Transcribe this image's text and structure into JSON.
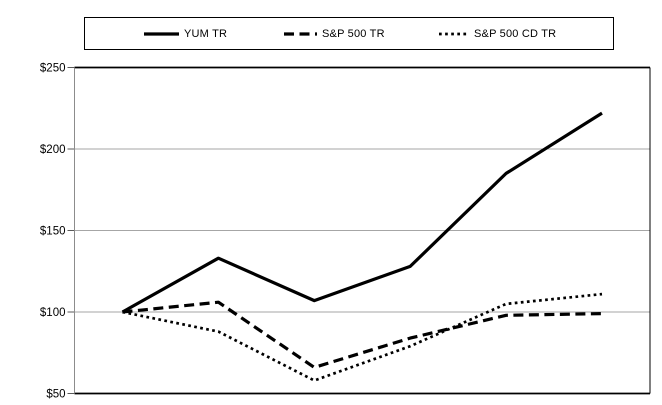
{
  "chart_data": {
    "type": "line",
    "title": "",
    "x": [
      1,
      2,
      3,
      4,
      5,
      6
    ],
    "x_axis_labels": [],
    "series": [
      {
        "name": "YUM TR",
        "line_style": "solid",
        "color": "#000000",
        "values": [
          100,
          133,
          107,
          128,
          185,
          222
        ]
      },
      {
        "name": "S&P 500 TR",
        "line_style": "dashed",
        "color": "#000000",
        "values": [
          100,
          106,
          66,
          84,
          98,
          99
        ]
      },
      {
        "name": "S&P 500 CD TR",
        "line_style": "dotted",
        "color": "#000000",
        "values": [
          100,
          88,
          58,
          79,
          105,
          111
        ]
      }
    ],
    "y_axis": {
      "min": 50,
      "max": 250,
      "ticks": [
        {
          "label": "$250",
          "value": 250
        },
        {
          "label": "$200",
          "value": 200
        },
        {
          "label": "$150",
          "value": 150
        },
        {
          "label": "$100",
          "value": 100
        },
        {
          "label": "$50",
          "value": 50
        }
      ]
    },
    "grid": true,
    "legend_position": "top",
    "colors": {
      "line": "#000000",
      "gridline": "#a6a6a6",
      "axis": "#8c8c8c",
      "border": "#000000",
      "background": "#ffffff"
    }
  }
}
